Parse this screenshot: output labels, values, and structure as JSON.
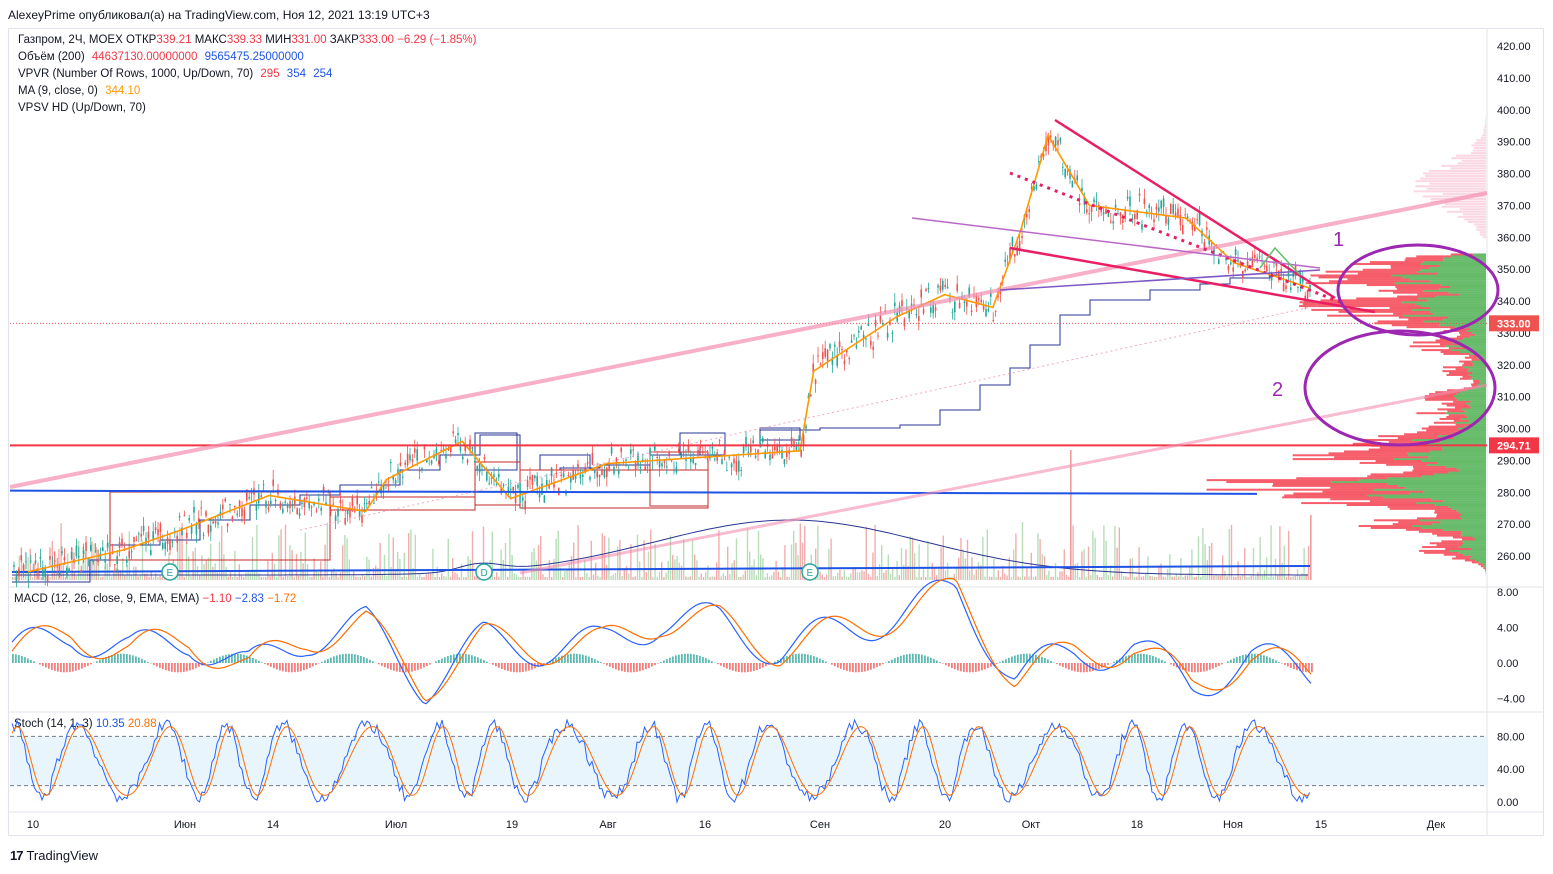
{
  "header": {
    "publish_line": "AlexeyPrime опубликовал(а) на TradingView.com, Ноя 12, 2021 13:19 UTC+3"
  },
  "legend": {
    "main_title": "Газпром, 2Ч, MOEX",
    "ohlc": {
      "open_label": "ОТКР",
      "open": "339.21",
      "high_label": "МАКС",
      "high": "339.33",
      "low_label": "МИН",
      "low": "331.00",
      "close_label": "ЗАКР",
      "close": "333.00",
      "change": "−6.29 (−1.85%)"
    },
    "volume": {
      "name": "Объём (200)",
      "v1": "44637130.00000000",
      "v2": "9565475.25000000"
    },
    "vpvr": {
      "name": "VPVR (Number Of Rows, 1000, Up/Down, 70)",
      "v1": "295",
      "v2": "354",
      "v3": "254"
    },
    "ma": {
      "name": "MA (9, close, 0)",
      "value": "344.10"
    },
    "vpsv": {
      "name": "VPSV HD (Up/Down, 70)"
    },
    "macd": {
      "name": "MACD (12, 26, close, 9, EMA, EMA)",
      "v1": "−1.10",
      "v2": "−2.83",
      "v3": "−1.72"
    },
    "stoch": {
      "name": "Stoch (14, 1, 3)",
      "v1": "10.35",
      "v2": "20.88"
    }
  },
  "colors": {
    "up": "#26a69a",
    "down": "#ef5350",
    "ma": "#ff9800",
    "macd": "#2962ff",
    "signal": "#ff6d00",
    "stoch_k": "#2962ff",
    "stoch_d": "#ff6d00",
    "trend_pink": "#f48fb1",
    "crimson": "#e91e63",
    "purple": "#9c27b0",
    "red_level": "#f23645",
    "blue_level": "#1e53e5",
    "vp_green": "#4caf50",
    "vp_red": "#f23645"
  },
  "price_axis": {
    "ticks": [
      "420.00",
      "410.00",
      "400.00",
      "390.00",
      "380.00",
      "370.00",
      "360.00",
      "350.00",
      "340.00",
      "330.00",
      "320.00",
      "310.00",
      "300.00",
      "290.00",
      "280.00",
      "270.00",
      "260.00"
    ]
  },
  "price_tags": {
    "last": "333.00",
    "level": "294.71"
  },
  "macd_axis": {
    "ticks": [
      "8.00",
      "4.00",
      "0.00",
      "−4.00"
    ]
  },
  "stoch_axis": {
    "ticks": [
      "80.00",
      "40.00",
      "0.00"
    ]
  },
  "time_axis": {
    "ticks": [
      "10",
      "Июн",
      "14",
      "Июл",
      "19",
      "Авг",
      "16",
      "Сен",
      "20",
      "Окт",
      "18",
      "Ноя",
      "15",
      "Дек"
    ]
  },
  "annotations": {
    "zone1": "1",
    "zone2": "2"
  },
  "events": {
    "e1": "E",
    "d1": "D",
    "e2": "E"
  },
  "brand": {
    "name": "TradingView",
    "logo": "17"
  },
  "chart_data": {
    "type": "line",
    "title": "Газпром, 2Ч, MOEX",
    "ylim": [
      250,
      425
    ],
    "x": [
      "2021-05-10",
      "2021-05-24",
      "2021-06-01",
      "2021-06-14",
      "2021-06-28",
      "2021-07-01",
      "2021-07-12",
      "2021-07-19",
      "2021-08-02",
      "2021-08-16",
      "2021-08-30",
      "2021-09-01",
      "2021-09-13",
      "2021-09-20",
      "2021-09-27",
      "2021-10-01",
      "2021-10-05",
      "2021-10-11",
      "2021-10-18",
      "2021-10-25",
      "2021-11-01",
      "2021-11-08",
      "2021-11-12"
    ],
    "series": [
      {
        "name": "MA (9, close, 0)",
        "values": [
          255,
          262,
          268,
          279,
          274,
          284,
          296,
          278,
          289,
          291,
          293,
          318,
          335,
          342,
          338,
          362,
          392,
          370,
          368,
          366,
          352,
          347,
          344
        ]
      }
    ],
    "macd": {
      "ylim": [
        -5,
        9
      ],
      "values": [
        1.0,
        3.5,
        1.2,
        2.8,
        -0.8,
        3.0,
        4.2,
        -2.5,
        2.5,
        1.8,
        2.0,
        5.0,
        4.5,
        1.5,
        3.5,
        5.5,
        8.0,
        -1.5,
        1.0,
        1.8,
        -2.5,
        0.5,
        -1.1
      ]
    },
    "stoch": {
      "ylim": [
        0,
        100
      ],
      "upper": 80,
      "lower": 20,
      "k_last": 10.35,
      "d_last": 20.88
    },
    "levels": {
      "last_price": 333.0,
      "horizontal_red": 294.71,
      "horizontal_blue": 279.5
    }
  }
}
